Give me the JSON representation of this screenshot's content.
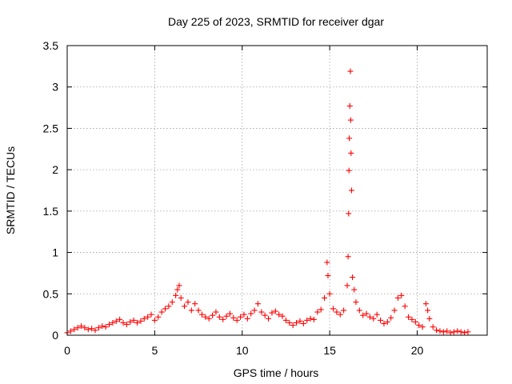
{
  "chart_data": {
    "type": "scatter",
    "title": "Day 225 of 2023, SRMTID for receiver dgar",
    "xlabel": "GPS time / hours",
    "ylabel": "SRMTID / TECUs",
    "xlim": [
      0,
      24
    ],
    "ylim": [
      0,
      3.5
    ],
    "xticks": [
      "0",
      "5",
      "10",
      "15",
      "20"
    ],
    "yticks": [
      "0",
      "0.5",
      "1",
      "1.5",
      "2",
      "2.5",
      "3",
      "3.5"
    ],
    "grid": true,
    "marker": "+",
    "color": "#ff0000",
    "series": [
      {
        "name": "SRMTID",
        "x": [
          0.0,
          0.2,
          0.4,
          0.6,
          0.8,
          1.0,
          1.2,
          1.4,
          1.6,
          1.8,
          2.0,
          2.2,
          2.4,
          2.6,
          2.8,
          3.0,
          3.2,
          3.4,
          3.6,
          3.8,
          4.0,
          4.2,
          4.4,
          4.6,
          4.8,
          5.0,
          5.2,
          5.4,
          5.6,
          5.8,
          6.0,
          6.2,
          6.3,
          6.4,
          6.5,
          6.7,
          6.9,
          7.1,
          7.3,
          7.5,
          7.7,
          7.9,
          8.1,
          8.3,
          8.5,
          8.7,
          8.9,
          9.1,
          9.3,
          9.5,
          9.7,
          9.9,
          10.1,
          10.3,
          10.5,
          10.7,
          10.9,
          11.1,
          11.3,
          11.5,
          11.7,
          11.9,
          12.1,
          12.3,
          12.5,
          12.7,
          12.9,
          13.1,
          13.3,
          13.5,
          13.7,
          13.9,
          14.1,
          14.3,
          14.5,
          14.7,
          14.85,
          14.9,
          15.0,
          15.2,
          15.4,
          15.6,
          15.8,
          16.0,
          16.05,
          16.08,
          16.1,
          16.12,
          16.15,
          16.18,
          16.2,
          16.22,
          16.25,
          16.3,
          16.4,
          16.5,
          16.7,
          16.9,
          17.1,
          17.3,
          17.5,
          17.7,
          17.9,
          18.1,
          18.3,
          18.5,
          18.7,
          18.9,
          19.1,
          19.3,
          19.5,
          19.7,
          19.9,
          20.1,
          20.3,
          20.5,
          20.6,
          20.7,
          20.9,
          21.1,
          21.3,
          21.5,
          21.7,
          21.9,
          22.1,
          22.3,
          22.5,
          22.7,
          22.9
        ],
        "y": [
          0.03,
          0.05,
          0.07,
          0.09,
          0.11,
          0.09,
          0.07,
          0.08,
          0.06,
          0.09,
          0.11,
          0.1,
          0.13,
          0.15,
          0.17,
          0.19,
          0.15,
          0.13,
          0.16,
          0.18,
          0.15,
          0.17,
          0.2,
          0.22,
          0.25,
          0.18,
          0.22,
          0.28,
          0.32,
          0.35,
          0.4,
          0.48,
          0.55,
          0.6,
          0.45,
          0.35,
          0.4,
          0.3,
          0.38,
          0.3,
          0.25,
          0.22,
          0.2,
          0.24,
          0.28,
          0.22,
          0.19,
          0.23,
          0.26,
          0.21,
          0.18,
          0.22,
          0.25,
          0.2,
          0.26,
          0.3,
          0.38,
          0.28,
          0.24,
          0.2,
          0.27,
          0.29,
          0.25,
          0.23,
          0.18,
          0.15,
          0.12,
          0.15,
          0.17,
          0.14,
          0.18,
          0.2,
          0.19,
          0.28,
          0.31,
          0.45,
          0.88,
          0.72,
          0.5,
          0.32,
          0.28,
          0.25,
          0.3,
          0.6,
          0.95,
          1.47,
          1.99,
          2.38,
          2.77,
          3.19,
          2.6,
          2.2,
          1.75,
          0.7,
          0.55,
          0.4,
          0.3,
          0.24,
          0.26,
          0.22,
          0.2,
          0.25,
          0.18,
          0.14,
          0.16,
          0.21,
          0.3,
          0.45,
          0.48,
          0.35,
          0.22,
          0.19,
          0.16,
          0.12,
          0.1,
          0.38,
          0.3,
          0.2,
          0.1,
          0.06,
          0.05,
          0.04,
          0.05,
          0.03,
          0.04,
          0.05,
          0.04,
          0.03,
          0.04
        ]
      }
    ]
  }
}
